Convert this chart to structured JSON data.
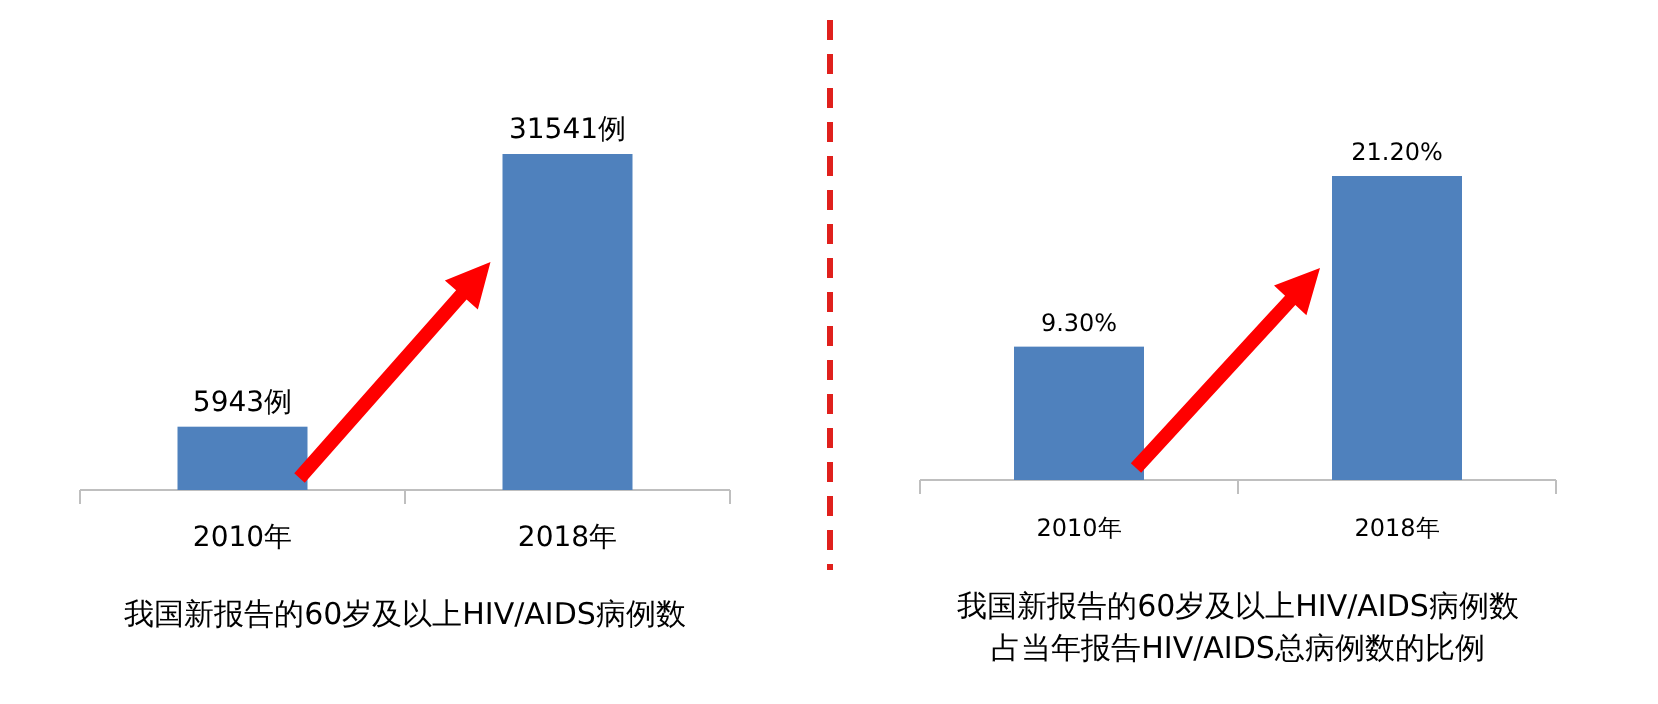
{
  "chart_data": [
    {
      "type": "bar",
      "title": "我国新报告的60岁及以上HIV/AIDS病例数",
      "categories": [
        "2010年",
        "2018年"
      ],
      "values": [
        5943,
        31541
      ],
      "value_labels": [
        "5943例",
        "31541例"
      ],
      "color": "#4f81bd"
    },
    {
      "type": "bar",
      "title": "我国新报告的60岁及以上HIV/AIDS病例数",
      "subtitle": "占当年报告HIV/AIDS总病例数的比例",
      "categories": [
        "2010年",
        "2018年"
      ],
      "values": [
        9.3,
        21.2
      ],
      "value_labels": [
        "9.30%",
        "21.20%"
      ],
      "color": "#4f81bd"
    }
  ]
}
